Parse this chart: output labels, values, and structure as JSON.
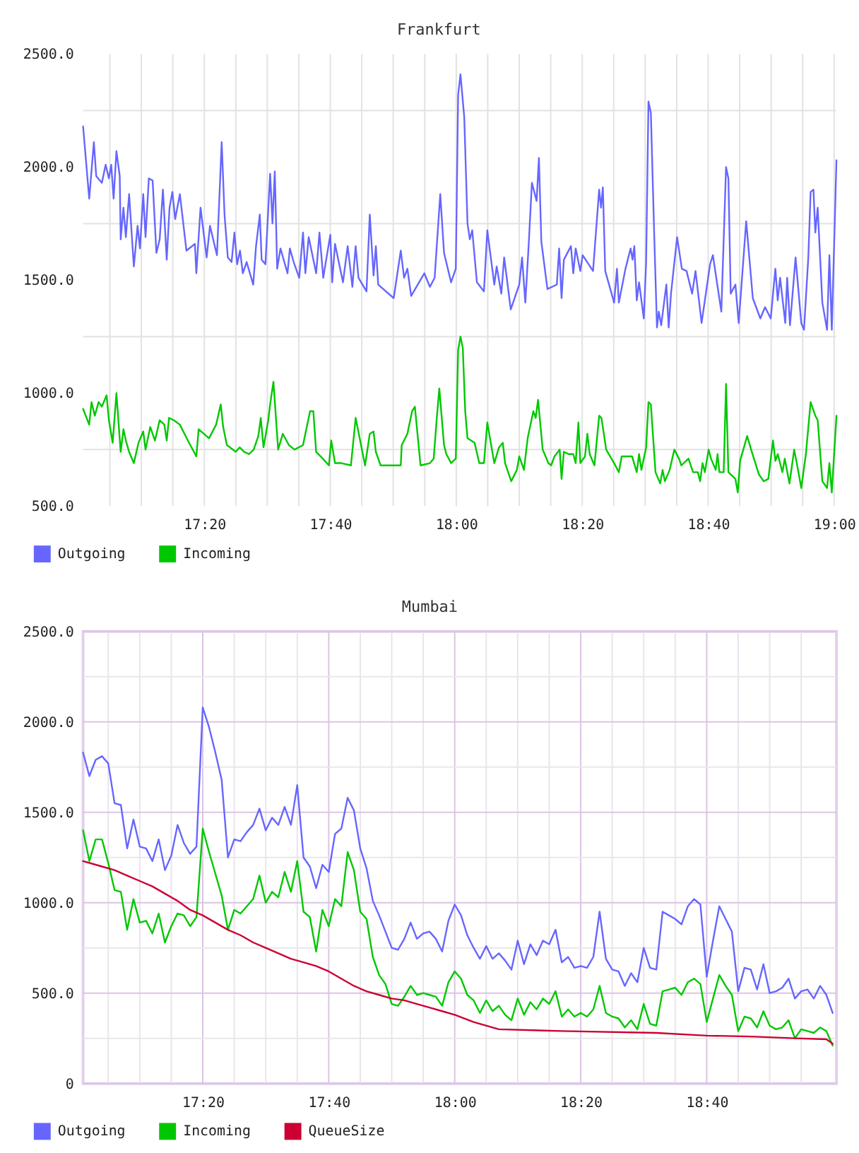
{
  "chart_data": [
    {
      "type": "line",
      "title": "Frankfurt",
      "xlim": [
        17.0125,
        19.0062
      ],
      "xticks": [
        {
          "value": 17.083333,
          "label": null
        },
        {
          "value": 17.166667,
          "label": null
        },
        {
          "value": 17.25,
          "label": null
        },
        {
          "value": 17.333333,
          "label": "17:20"
        },
        {
          "value": 17.416667,
          "label": null
        },
        {
          "value": 17.5,
          "label": null
        },
        {
          "value": 17.583333,
          "label": null
        },
        {
          "value": 17.666667,
          "label": "17:40"
        },
        {
          "value": 17.75,
          "label": null
        },
        {
          "value": 17.833333,
          "label": null
        },
        {
          "value": 17.916667,
          "label": null
        },
        {
          "value": 18,
          "label": "18:00"
        },
        {
          "value": 18.083333,
          "label": null
        },
        {
          "value": 18.166667,
          "label": null
        },
        {
          "value": 18.25,
          "label": null
        },
        {
          "value": 18.333333,
          "label": "18:20"
        },
        {
          "value": 18.416667,
          "label": null
        },
        {
          "value": 18.5,
          "label": null
        },
        {
          "value": 18.583333,
          "label": null
        },
        {
          "value": 18.666667,
          "label": "18:40"
        },
        {
          "value": 18.75,
          "label": null
        },
        {
          "value": 18.833333,
          "label": null
        },
        {
          "value": 18.916667,
          "label": null
        },
        {
          "value": 19,
          "label": "19:00"
        }
      ],
      "ylim": [
        500,
        2500
      ],
      "yticks": [
        {
          "value": 2500,
          "label": "2500.0"
        },
        {
          "value": 2250,
          "label": null
        },
        {
          "value": 2000,
          "label": "2000.0"
        },
        {
          "value": 1750,
          "label": null
        },
        {
          "value": 1500,
          "label": "1500.0"
        },
        {
          "value": 1250,
          "label": null
        },
        {
          "value": 1000,
          "label": "1000.0"
        },
        {
          "value": 750,
          "label": null
        },
        {
          "value": 500,
          "label": "500.0"
        }
      ],
      "grid": true,
      "legend": "bottom left",
      "series": [
        {
          "name": "Outgoing",
          "color": "#6666ff",
          "x": [
            17.0125,
            17.0287,
            17.041,
            17.0473,
            17.0622,
            17.0722,
            17.0808,
            17.087,
            17.0933,
            17.1007,
            17.1095,
            17.112,
            17.1193,
            17.1257,
            17.1343,
            17.1468,
            17.1567,
            17.163,
            17.1717,
            17.1778,
            17.1865,
            17.1965,
            17.2065,
            17.2152,
            17.2238,
            17.2338,
            17.2413,
            17.2488,
            17.2562,
            17.2687,
            17.286,
            17.3085,
            17.3122,
            17.3233,
            17.3395,
            17.3483,
            17.3668,
            17.3793,
            17.3868,
            17.3955,
            17.4055,
            17.413,
            17.4203,
            17.4278,
            17.4353,
            17.4453,
            17.4627,
            17.4702,
            17.4802,
            17.485,
            17.495,
            17.5075,
            17.5137,
            17.5198,
            17.5262,
            17.5348,
            17.5535,
            17.5597,
            17.5697,
            17.5845,
            17.5945,
            17.6007,
            17.6095,
            17.6293,
            17.638,
            17.648,
            17.6667,
            17.6717,
            17.6792,
            17.7002,
            17.7127,
            17.7252,
            17.7338,
            17.7413,
            17.7625,
            17.7712,
            17.7812,
            17.7873,
            17.7935,
            17.8345,
            17.8532,
            17.862,
            17.8707,
            17.8807,
            17.9155,
            17.9303,
            17.9428,
            17.9577,
            17.9677,
            17.9863,
            17.9988,
            18.005,
            18.0112,
            18.0212,
            18.0298,
            18.036,
            18.0423,
            18.0547,
            18.0733,
            18.0822,
            18.1007,
            18.107,
            18.1193,
            18.1268,
            18.1443,
            18.1667,
            18.1742,
            18.1828,
            18.1915,
            18.2002,
            18.2127,
            18.2188,
            18.2252,
            18.2413,
            18.2662,
            18.2723,
            18.2787,
            18.2848,
            18.3035,
            18.3097,
            18.316,
            18.3283,
            18.3345,
            18.362,
            18.3782,
            18.3832,
            18.388,
            18.3943,
            18.4178,
            18.4253,
            18.4303,
            18.4478,
            18.4615,
            18.4665,
            18.4713,
            18.4777,
            18.4838,
            18.4963,
            18.5025,
            18.5087,
            18.515,
            18.5237,
            18.5312,
            18.536,
            18.5423,
            18.556,
            18.5622,
            18.5683,
            18.5845,
            18.597,
            18.6095,
            18.6243,
            18.6332,
            18.6493,
            18.6717,
            18.6792,
            18.7015,
            18.714,
            18.7202,
            18.7263,
            18.7388,
            18.7475,
            18.7673,
            18.7848,
            18.8047,
            18.8172,
            18.8322,
            18.8445,
            18.8507,
            18.857,
            18.8707,
            18.8757,
            18.8832,
            18.898,
            18.913,
            18.9203,
            18.9317,
            18.9378,
            18.9453,
            18.9502,
            18.9565,
            18.9688,
            18.9813,
            18.9875,
            18.9938,
            19.0062
          ],
          "values": [
            2180,
            1860,
            2110,
            1960,
            1930,
            2010,
            1950,
            2010,
            1860,
            2070,
            1960,
            1680,
            1820,
            1690,
            1880,
            1560,
            1740,
            1640,
            1880,
            1690,
            1950,
            1940,
            1620,
            1680,
            1900,
            1590,
            1820,
            1890,
            1770,
            1880,
            1630,
            1660,
            1530,
            1820,
            1600,
            1740,
            1610,
            2110,
            1790,
            1600,
            1580,
            1710,
            1570,
            1630,
            1530,
            1580,
            1480,
            1650,
            1790,
            1590,
            1570,
            1970,
            1750,
            1980,
            1550,
            1640,
            1530,
            1640,
            1580,
            1510,
            1710,
            1530,
            1690,
            1530,
            1710,
            1510,
            1700,
            1490,
            1660,
            1490,
            1650,
            1470,
            1650,
            1510,
            1450,
            1790,
            1520,
            1650,
            1480,
            1420,
            1630,
            1510,
            1550,
            1430,
            1530,
            1470,
            1510,
            1880,
            1620,
            1490,
            1550,
            2320,
            2410,
            2220,
            1750,
            1680,
            1720,
            1490,
            1450,
            1720,
            1480,
            1560,
            1440,
            1600,
            1370,
            1480,
            1600,
            1400,
            1650,
            1930,
            1850,
            2040,
            1670,
            1460,
            1480,
            1640,
            1420,
            1590,
            1650,
            1530,
            1640,
            1540,
            1610,
            1540,
            1900,
            1820,
            1910,
            1540,
            1400,
            1550,
            1400,
            1550,
            1640,
            1590,
            1650,
            1410,
            1490,
            1330,
            1580,
            2290,
            2240,
            1710,
            1290,
            1360,
            1300,
            1480,
            1290,
            1440,
            1690,
            1550,
            1540,
            1440,
            1540,
            1310,
            1570,
            1610,
            1360,
            2000,
            1950,
            1440,
            1480,
            1310,
            1760,
            1420,
            1330,
            1380,
            1330,
            1550,
            1410,
            1510,
            1310,
            1510,
            1300,
            1600,
            1310,
            1280,
            1600,
            1890,
            1900,
            1710,
            1820,
            1400,
            1280,
            1610,
            1280,
            2030
          ]
        },
        {
          "name": "Incoming",
          "color": "#00c800",
          "x": [
            17.0125,
            17.0287,
            17.0348,
            17.0435,
            17.0535,
            17.0622,
            17.0747,
            17.0808,
            17.0908,
            17.1007,
            17.112,
            17.1193,
            17.1257,
            17.1343,
            17.1468,
            17.1592,
            17.1717,
            17.1778,
            17.1903,
            17.2027,
            17.2152,
            17.2277,
            17.2338,
            17.24,
            17.2525,
            17.2687,
            17.2898,
            17.3122,
            17.3183,
            17.3458,
            17.3645,
            17.3768,
            17.3832,
            17.393,
            17.4167,
            17.4267,
            17.439,
            17.4515,
            17.464,
            17.4763,
            17.4827,
            17.49,
            17.5025,
            17.5075,
            17.5162,
            17.5287,
            17.541,
            17.5572,
            17.5722,
            17.5945,
            17.6045,
            17.6132,
            17.6218,
            17.6293,
            17.6468,
            17.663,
            17.6692,
            17.6792,
            17.6965,
            17.7213,
            17.7338,
            17.7587,
            17.7712,
            17.7812,
            17.7873,
            17.7998,
            17.8308,
            17.8532,
            17.8557,
            17.8707,
            17.8832,
            17.8905,
            17.9055,
            17.9303,
            17.9403,
            17.949,
            17.9552,
            17.9677,
            17.9738,
            17.9863,
            17.9988,
            18.005,
            18.0112,
            18.0173,
            18.0237,
            18.0298,
            18.0485,
            18.061,
            18.0733,
            18.0822,
            18.0883,
            18.1007,
            18.1132,
            18.1232,
            18.1293,
            18.1455,
            18.1605,
            18.1667,
            18.1792,
            18.189,
            18.204,
            18.2102,
            18.2165,
            18.2288,
            18.2438,
            18.2512,
            18.26,
            18.2737,
            18.2787,
            18.2848,
            18.2973,
            18.3097,
            18.316,
            18.3233,
            18.3283,
            18.3408,
            18.347,
            18.3532,
            18.3657,
            18.3782,
            18.3843,
            18.3968,
            18.4178,
            18.4303,
            18.4378,
            18.4652,
            18.4777,
            18.4838,
            18.49,
            18.5025,
            18.5087,
            18.515,
            18.5273,
            18.5398,
            18.546,
            18.5522,
            18.5647,
            18.5772,
            18.5895,
            18.5958,
            18.6145,
            18.6268,
            18.6393,
            18.6455,
            18.6517,
            18.658,
            18.6678,
            18.6742,
            18.6865,
            18.6915,
            18.6965,
            18.7077,
            18.714,
            18.7202,
            18.7388,
            18.745,
            18.7512,
            18.7698,
            18.7823,
            18.801,
            18.8135,
            18.8258,
            18.8383,
            18.8445,
            18.8507,
            18.8632,
            18.8693,
            18.8818,
            18.8943,
            18.9067,
            18.913,
            18.9253,
            18.9378,
            18.9502,
            18.9565,
            18.9688,
            18.9813,
            18.9875,
            18.9938,
            19.0062
          ],
          "values": [
            930,
            860,
            960,
            900,
            960,
            940,
            990,
            880,
            780,
            1000,
            740,
            840,
            790,
            740,
            690,
            780,
            830,
            750,
            850,
            790,
            880,
            860,
            790,
            890,
            880,
            860,
            790,
            720,
            840,
            800,
            860,
            950,
            850,
            770,
            740,
            760,
            740,
            730,
            750,
            810,
            890,
            760,
            880,
            950,
            1050,
            750,
            820,
            770,
            750,
            770,
            850,
            920,
            920,
            740,
            710,
            680,
            790,
            690,
            690,
            680,
            890,
            680,
            820,
            830,
            740,
            680,
            680,
            680,
            770,
            820,
            920,
            940,
            680,
            690,
            710,
            900,
            1020,
            770,
            730,
            690,
            710,
            1190,
            1250,
            1200,
            920,
            800,
            780,
            690,
            690,
            870,
            810,
            690,
            760,
            780,
            690,
            610,
            660,
            720,
            660,
            800,
            920,
            890,
            970,
            750,
            690,
            680,
            720,
            750,
            620,
            740,
            730,
            730,
            690,
            870,
            690,
            720,
            820,
            730,
            680,
            900,
            890,
            750,
            690,
            650,
            720,
            720,
            650,
            730,
            660,
            760,
            960,
            950,
            650,
            600,
            660,
            610,
            660,
            750,
            710,
            680,
            710,
            650,
            650,
            610,
            690,
            650,
            750,
            710,
            660,
            730,
            650,
            650,
            1040,
            650,
            620,
            560,
            700,
            810,
            740,
            640,
            610,
            620,
            790,
            700,
            730,
            650,
            710,
            600,
            750,
            640,
            580,
            730,
            960,
            900,
            880,
            610,
            580,
            690,
            560,
            900
          ]
        }
      ]
    },
    {
      "type": "line",
      "title": "Mumbai",
      "xlim": [
        17.0167,
        19.01
      ],
      "xticks": [
        {
          "value": 17.083333,
          "label": null
        },
        {
          "value": 17.166667,
          "label": null
        },
        {
          "value": 17.25,
          "label": null
        },
        {
          "value": 17.333333,
          "label": "17:20"
        },
        {
          "value": 17.416667,
          "label": null
        },
        {
          "value": 17.5,
          "label": null
        },
        {
          "value": 17.583333,
          "label": null
        },
        {
          "value": 17.666667,
          "label": "17:40"
        },
        {
          "value": 17.75,
          "label": null
        },
        {
          "value": 17.833333,
          "label": null
        },
        {
          "value": 17.916667,
          "label": null
        },
        {
          "value": 18,
          "label": "18:00"
        },
        {
          "value": 18.083333,
          "label": null
        },
        {
          "value": 18.166667,
          "label": null
        },
        {
          "value": 18.25,
          "label": null
        },
        {
          "value": 18.333333,
          "label": "18:20"
        },
        {
          "value": 18.416667,
          "label": null
        },
        {
          "value": 18.5,
          "label": null
        },
        {
          "value": 18.583333,
          "label": null
        },
        {
          "value": 18.666667,
          "label": "18:40"
        },
        {
          "value": 18.75,
          "label": null
        },
        {
          "value": 18.833333,
          "label": null
        },
        {
          "value": 18.916667,
          "label": null
        }
      ],
      "ylim": [
        0,
        2500
      ],
      "yticks": [
        {
          "value": 2500,
          "label": "2500.0"
        },
        {
          "value": 2250,
          "label": null
        },
        {
          "value": 2000,
          "label": "2000.0"
        },
        {
          "value": 1750,
          "label": null
        },
        {
          "value": 1500,
          "label": "1500.0"
        },
        {
          "value": 1250,
          "label": null
        },
        {
          "value": 1000,
          "label": "1000.0"
        },
        {
          "value": 750,
          "label": null
        },
        {
          "value": 500,
          "label": "500.0"
        },
        {
          "value": 250,
          "label": null
        },
        0
      ],
      "grid": true,
      "legend": "bottom left",
      "x": [
        17.0167,
        17.0333,
        17.05,
        17.0667,
        17.0833,
        17.1,
        17.1167,
        17.1333,
        17.15,
        17.1667,
        17.1833,
        17.2,
        17.2167,
        17.2333,
        17.25,
        17.2667,
        17.2833,
        17.3,
        17.3167,
        17.3333,
        17.35,
        17.3667,
        17.3833,
        17.4,
        17.4167,
        17.4333,
        17.45,
        17.4667,
        17.4833,
        17.5,
        17.5167,
        17.5333,
        17.55,
        17.5667,
        17.5833,
        17.6,
        17.6167,
        17.6333,
        17.65,
        17.6667,
        17.6833,
        17.7,
        17.7167,
        17.7333,
        17.75,
        17.7667,
        17.7833,
        17.8,
        17.8167,
        17.8333,
        17.85,
        17.8667,
        17.8833,
        17.9,
        17.9167,
        17.9333,
        17.95,
        17.9667,
        17.9833,
        18,
        18.0167,
        18.0333,
        18.05,
        18.0667,
        18.0833,
        18.1,
        18.1167,
        18.1333,
        18.15,
        18.1667,
        18.1833,
        18.2,
        18.2167,
        18.2333,
        18.25,
        18.2667,
        18.2833,
        18.3,
        18.3167,
        18.3333,
        18.35,
        18.3667,
        18.3833,
        18.4,
        18.4167,
        18.4333,
        18.45,
        18.4667,
        18.4833,
        18.5,
        18.5167,
        18.5333,
        18.55,
        18.5667,
        18.5833,
        18.6,
        18.6167,
        18.6333,
        18.65,
        18.6667,
        18.6833,
        18.7,
        18.7167,
        18.7333,
        18.75,
        18.7667,
        18.7833,
        18.8,
        18.8167,
        18.8333,
        18.85,
        18.8667,
        18.8833,
        18.9,
        18.9167,
        18.9333,
        18.95,
        18.9667,
        18.9833,
        19
      ],
      "series": [
        {
          "name": "Outgoing",
          "color": "#6666ff",
          "values": [
            1830,
            1700,
            1790,
            1810,
            1770,
            1550,
            1540,
            1300,
            1460,
            1310,
            1300,
            1230,
            1350,
            1180,
            1260,
            1430,
            1330,
            1270,
            1310,
            2080,
            1970,
            1830,
            1680,
            1250,
            1350,
            1340,
            1390,
            1430,
            1520,
            1400,
            1470,
            1430,
            1530,
            1430,
            1650,
            1250,
            1200,
            1080,
            1210,
            1170,
            1380,
            1410,
            1580,
            1510,
            1300,
            1190,
            1010,
            930,
            840,
            750,
            740,
            800,
            890,
            800,
            830,
            840,
            800,
            730,
            900,
            990,
            930,
            820,
            750,
            690,
            760,
            690,
            720,
            680,
            630,
            790,
            660,
            770,
            710,
            790,
            770,
            850,
            670,
            700,
            640,
            650,
            640,
            700,
            950,
            690,
            630,
            620,
            540,
            610,
            560,
            750,
            640,
            630,
            950,
            930,
            910,
            880,
            980,
            1020,
            990,
            590,
            790,
            980,
            910,
            840,
            510,
            640,
            630,
            520,
            660,
            500,
            510,
            530,
            580,
            470,
            510,
            520,
            470,
            540,
            490,
            390
          ]
        },
        {
          "name": "Incoming",
          "color": "#00c800",
          "values": [
            1400,
            1230,
            1350,
            1350,
            1220,
            1070,
            1060,
            850,
            1020,
            890,
            900,
            830,
            940,
            780,
            870,
            940,
            930,
            870,
            920,
            1410,
            1280,
            1160,
            1040,
            850,
            960,
            940,
            980,
            1020,
            1150,
            1000,
            1060,
            1030,
            1170,
            1060,
            1230,
            950,
            920,
            730,
            960,
            870,
            1020,
            980,
            1280,
            1180,
            950,
            910,
            700,
            600,
            550,
            440,
            430,
            480,
            540,
            490,
            500,
            490,
            480,
            430,
            560,
            620,
            580,
            490,
            460,
            390,
            460,
            400,
            430,
            380,
            350,
            470,
            380,
            450,
            410,
            470,
            440,
            510,
            370,
            410,
            370,
            390,
            370,
            410,
            540,
            390,
            370,
            360,
            310,
            350,
            300,
            440,
            330,
            320,
            510,
            520,
            530,
            490,
            560,
            580,
            550,
            340,
            470,
            600,
            540,
            490,
            290,
            370,
            360,
            310,
            400,
            320,
            300,
            310,
            350,
            250,
            300,
            290,
            280,
            310,
            290,
            210
          ]
        },
        {
          "name": "QueueSize",
          "color": "#cc0033",
          "x": [
            17.0167,
            17.0667,
            17.1,
            17.1333,
            17.1667,
            17.2,
            17.2333,
            17.2667,
            17.3,
            17.3333,
            17.3667,
            17.4,
            17.4333,
            17.4667,
            17.5,
            17.5333,
            17.5667,
            17.6,
            17.6333,
            17.6667,
            17.7,
            17.7333,
            17.7667,
            17.8,
            17.8333,
            17.8667,
            17.9,
            17.9333,
            17.9667,
            18,
            18.05,
            18.1167,
            18.2833,
            18.5333,
            18.6667,
            18.7833,
            18.9,
            18.9833,
            19
          ],
          "values": [
            1230,
            1200,
            1180,
            1150,
            1120,
            1090,
            1050,
            1010,
            960,
            930,
            890,
            850,
            820,
            780,
            750,
            720,
            690,
            670,
            650,
            620,
            580,
            540,
            510,
            490,
            470,
            460,
            440,
            420,
            400,
            380,
            340,
            300,
            290,
            280,
            265,
            260,
            250,
            245,
            220
          ]
        }
      ]
    }
  ]
}
